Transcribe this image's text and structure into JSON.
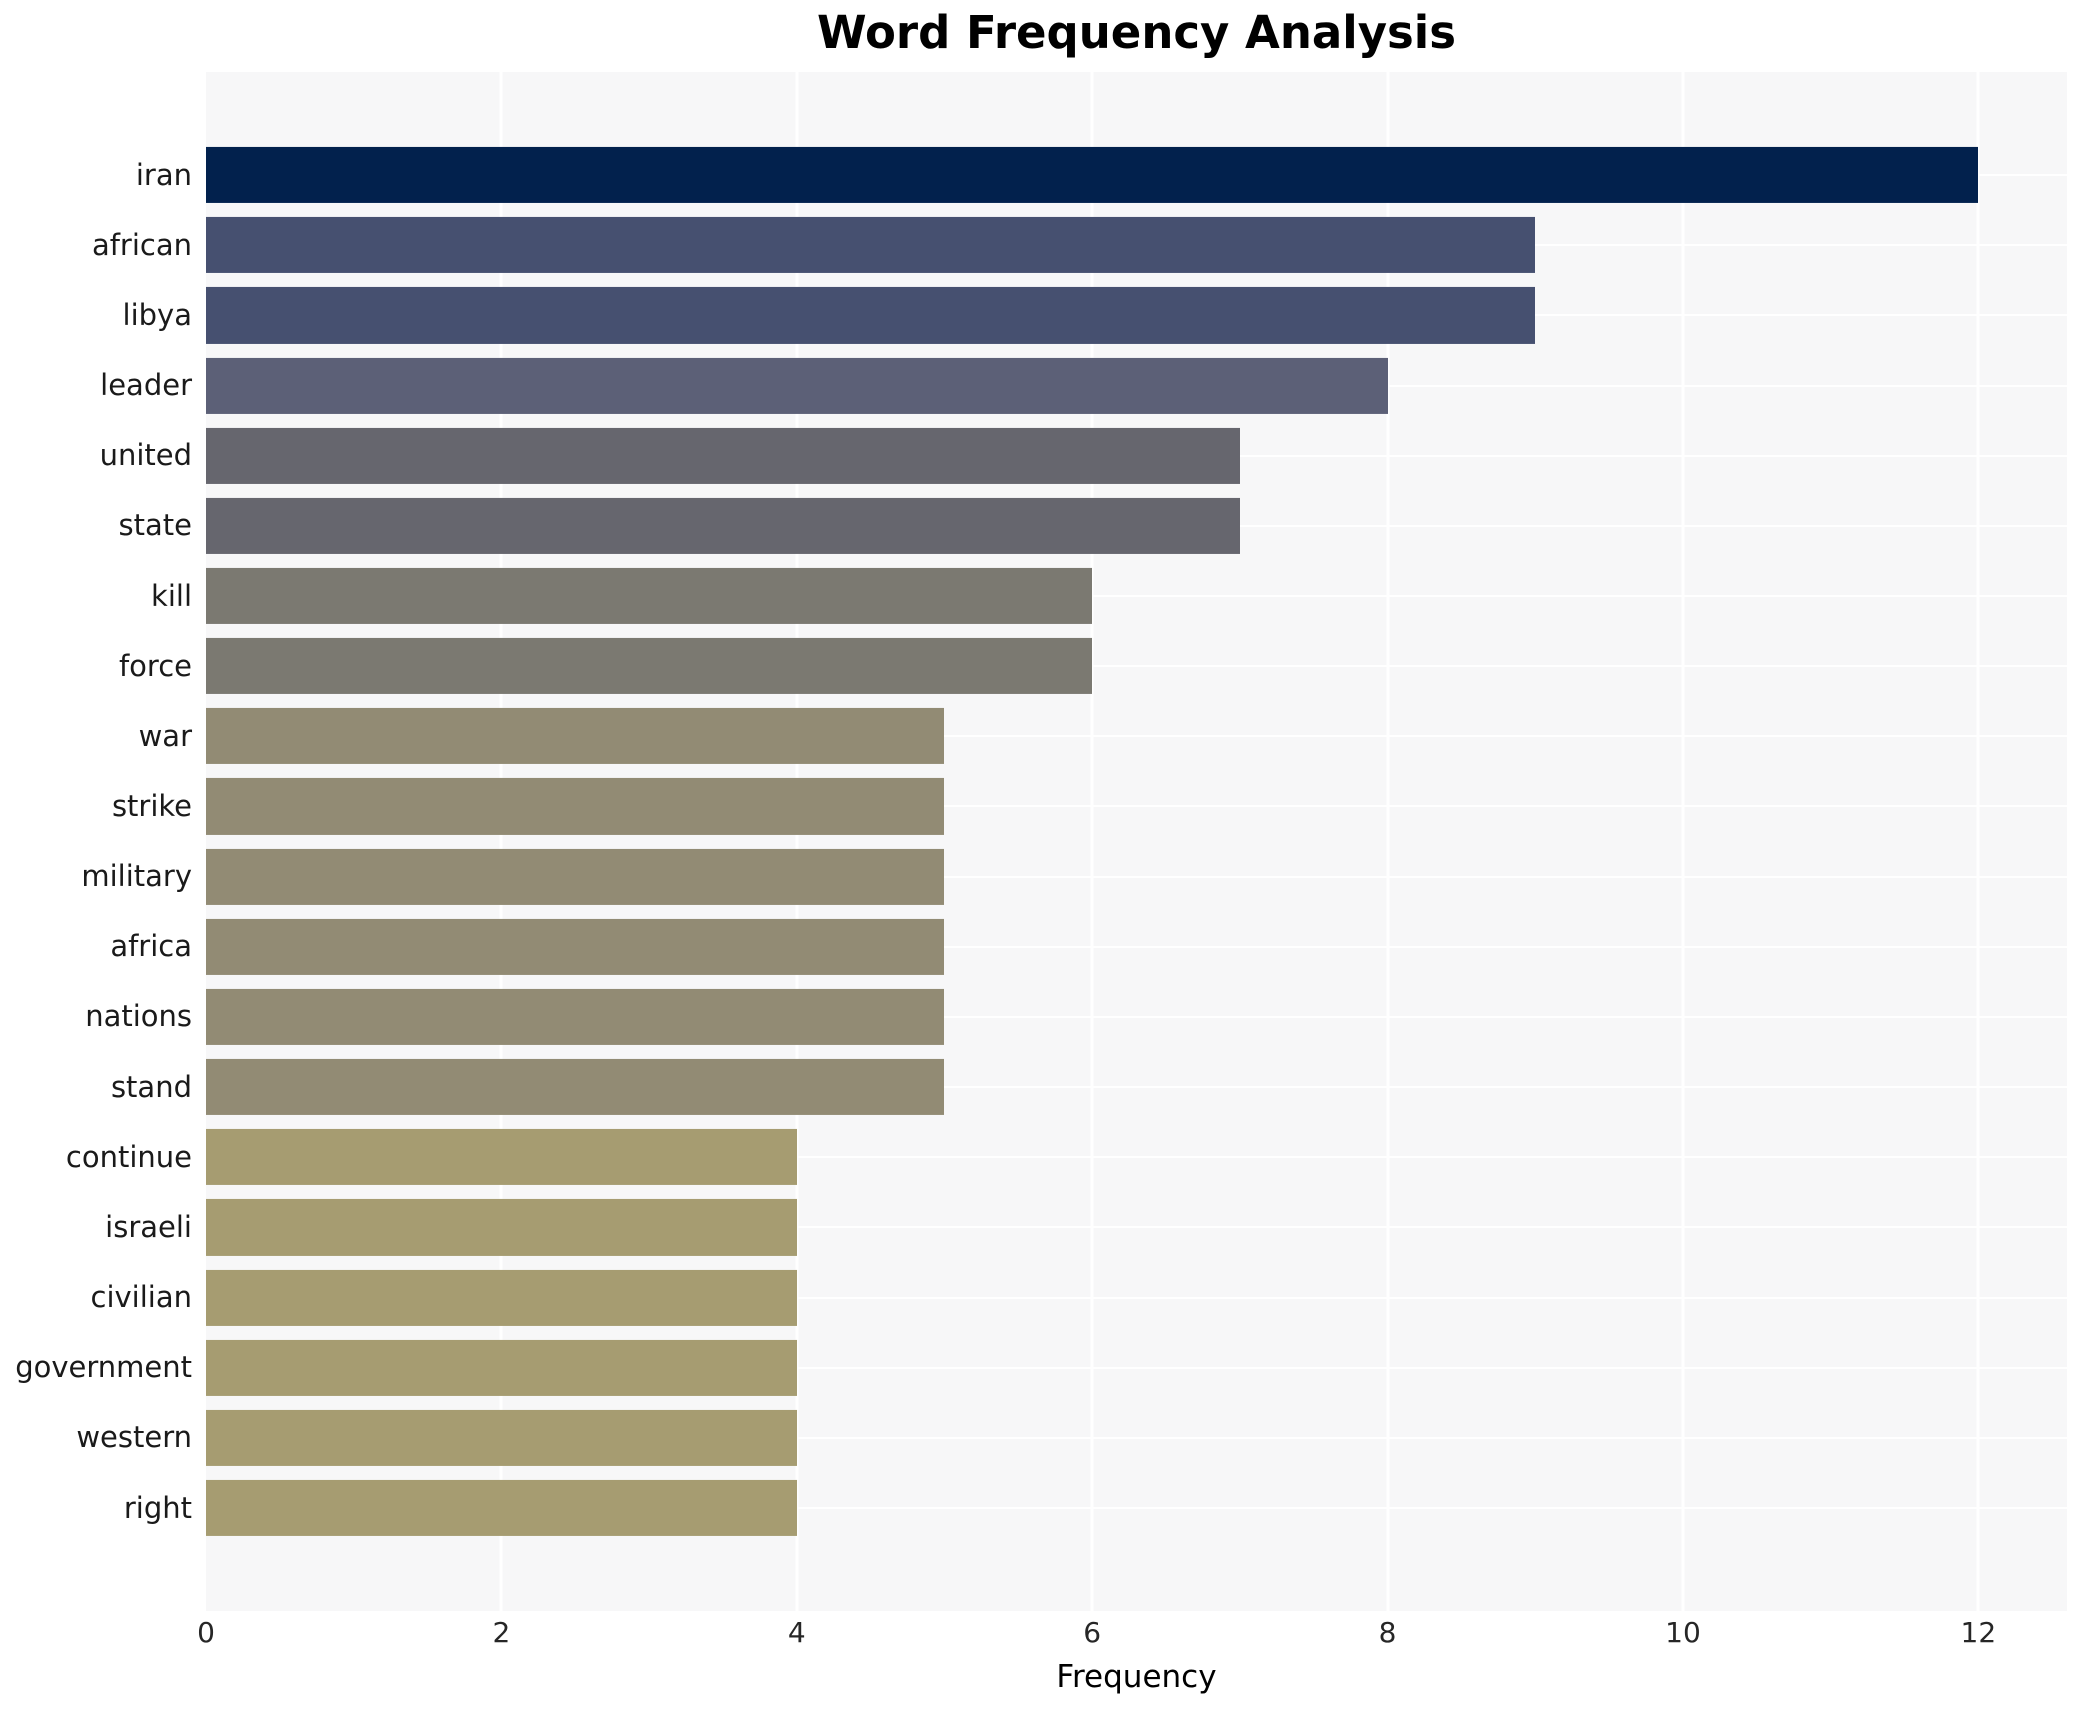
{
  "title": "Word Frequency Analysis",
  "chart_data": {
    "type": "bar",
    "orientation": "horizontal",
    "title": "Word Frequency Analysis",
    "xlabel": "Frequency",
    "ylabel": "",
    "categories": [
      "iran",
      "african",
      "libya",
      "leader",
      "united",
      "state",
      "kill",
      "force",
      "war",
      "strike",
      "military",
      "africa",
      "nations",
      "stand",
      "continue",
      "israeli",
      "civilian",
      "government",
      "western",
      "right"
    ],
    "values": [
      12,
      9,
      9,
      8,
      7,
      7,
      6,
      6,
      5,
      5,
      5,
      5,
      5,
      5,
      4,
      4,
      4,
      4,
      4,
      4
    ],
    "bar_colors": [
      "#02214d",
      "#465070",
      "#465070",
      "#5c6077",
      "#66666e",
      "#66666e",
      "#7b7971",
      "#7b7971",
      "#928b74",
      "#928b74",
      "#928b74",
      "#928b74",
      "#928b74",
      "#928b74",
      "#a69c71",
      "#a69c71",
      "#a69c71",
      "#a69c71",
      "#a69c71",
      "#a69c71"
    ],
    "xticks": [
      0,
      2,
      4,
      6,
      8,
      10,
      12
    ],
    "xlim": [
      0,
      12.6
    ],
    "grid": true,
    "legend": false,
    "plot_bg_color": "#f7f7f8",
    "grid_color": "#ffffff",
    "figure_bg_color": "#ffffff"
  }
}
